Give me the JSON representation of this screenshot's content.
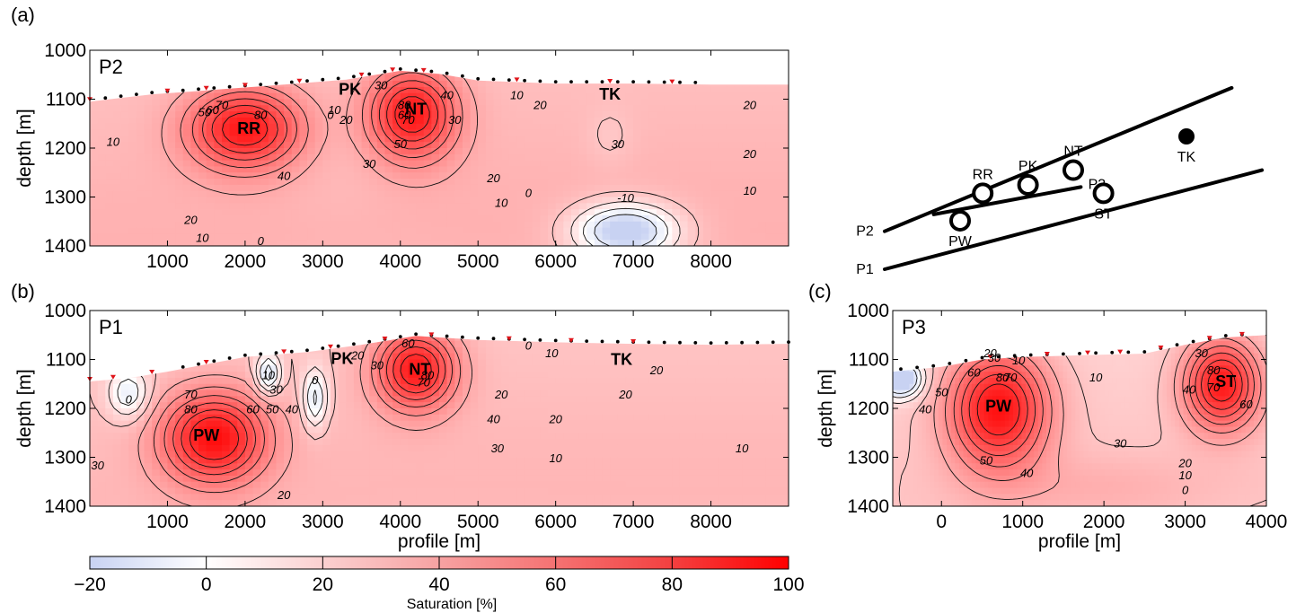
{
  "colors": {
    "negative": "#c8d2f2",
    "zero": "#ffffff",
    "max": "#ff0000",
    "contour": "#111111",
    "sensor_black": "#000000",
    "sensor_red": "#e0141a"
  },
  "chart_data": [
    {
      "type": "heatmap",
      "panel": "(a)",
      "label": "P2",
      "ylabel": "depth [m]",
      "xlabel": "",
      "xlim": [
        0,
        9000
      ],
      "ylim": [
        1400,
        1000
      ],
      "x_ticks": [
        "1000",
        "2000",
        "3000",
        "4000",
        "5000",
        "6000",
        "7000",
        "8000"
      ],
      "x_tick_values": [
        1000,
        2000,
        3000,
        4000,
        5000,
        6000,
        7000,
        8000
      ],
      "y_ticks": [
        "1000",
        "1100",
        "1200",
        "1300",
        "1400"
      ],
      "y_tick_values": [
        1000,
        1100,
        1200,
        1300,
        1400
      ],
      "background_saturation": 22,
      "surface": [
        [
          0,
          1105
        ],
        [
          800,
          1090
        ],
        [
          1500,
          1082
        ],
        [
          2500,
          1070
        ],
        [
          3300,
          1060
        ],
        [
          4000,
          1042
        ],
        [
          4500,
          1048
        ],
        [
          5000,
          1062
        ],
        [
          6000,
          1068
        ],
        [
          7000,
          1068
        ],
        [
          8000,
          1070
        ],
        [
          9000,
          1070
        ]
      ],
      "anomalies": [
        {
          "x": 2000,
          "depth": 1160,
          "peak": 85,
          "sx": 700,
          "sy": 80
        },
        {
          "x": 4150,
          "depth": 1130,
          "peak": 85,
          "sx": 550,
          "sy": 90
        },
        {
          "x": 3250,
          "depth": 1230,
          "peak": 15,
          "sx": 800,
          "sy": 150
        },
        {
          "x": 6900,
          "depth": 1370,
          "peak": -32,
          "sx": 650,
          "sy": 55
        },
        {
          "x": 6700,
          "depth": 1180,
          "peak": 12,
          "sx": 300,
          "sy": 60
        }
      ],
      "features": [
        {
          "name": "RR",
          "x": 2050,
          "depth": 1160
        },
        {
          "name": "PK",
          "x": 3350,
          "depth": 1080
        },
        {
          "name": "NT",
          "x": 4200,
          "depth": 1120
        },
        {
          "name": "TK",
          "x": 6700,
          "depth": 1090
        }
      ],
      "contour_labels": [
        {
          "text": "80",
          "x": 2200,
          "depth": 1140
        },
        {
          "text": "70",
          "x": 1700,
          "depth": 1120
        },
        {
          "text": "60",
          "x": 1580,
          "depth": 1130
        },
        {
          "text": "50",
          "x": 1480,
          "depth": 1135
        },
        {
          "text": "40",
          "x": 2500,
          "depth": 1265
        },
        {
          "text": "30",
          "x": 3600,
          "depth": 1240
        },
        {
          "text": "20",
          "x": 1300,
          "depth": 1355
        },
        {
          "text": "10",
          "x": 1450,
          "depth": 1392
        },
        {
          "text": "10",
          "x": 300,
          "depth": 1195
        },
        {
          "text": "0",
          "x": 2200,
          "depth": 1398
        },
        {
          "text": "80",
          "x": 4050,
          "depth": 1120
        },
        {
          "text": "70",
          "x": 4100,
          "depth": 1150
        },
        {
          "text": "60",
          "x": 4050,
          "depth": 1140
        },
        {
          "text": "50",
          "x": 4000,
          "depth": 1200
        },
        {
          "text": "40",
          "x": 4600,
          "depth": 1100
        },
        {
          "text": "30",
          "x": 4700,
          "depth": 1150
        },
        {
          "text": "10",
          "x": 3150,
          "depth": 1130
        },
        {
          "text": "20",
          "x": 3300,
          "depth": 1150
        },
        {
          "text": "0",
          "x": 3100,
          "depth": 1140
        },
        {
          "text": "30",
          "x": 3750,
          "depth": 1080
        },
        {
          "text": "20",
          "x": 5200,
          "depth": 1270
        },
        {
          "text": "10",
          "x": 5300,
          "depth": 1320
        },
        {
          "text": "0",
          "x": 5650,
          "depth": 1300
        },
        {
          "text": "-10",
          "x": 6900,
          "depth": 1310
        },
        {
          "text": "10",
          "x": 5500,
          "depth": 1100
        },
        {
          "text": "20",
          "x": 5800,
          "depth": 1120
        },
        {
          "text": "30",
          "x": 6800,
          "depth": 1200
        },
        {
          "text": "20",
          "x": 8500,
          "depth": 1120
        },
        {
          "text": "20",
          "x": 8500,
          "depth": 1220
        },
        {
          "text": "10",
          "x": 8500,
          "depth": 1295
        }
      ],
      "sensors_black": [
        200,
        400,
        600,
        800,
        1000,
        1200,
        1400,
        1600,
        1800,
        2000,
        2200,
        2400,
        2600,
        2800,
        3000,
        3200,
        3400,
        3600,
        3800,
        4000,
        4200,
        4400,
        4600,
        4800,
        5000,
        5200,
        5400,
        5600,
        5800,
        6000,
        6200,
        6400,
        6600,
        6800,
        7000,
        7200,
        7400,
        7600,
        7800
      ],
      "sensors_red": [
        0,
        1000,
        1500,
        2000,
        2700,
        3500,
        3900,
        4300,
        5500,
        6700,
        7500
      ]
    },
    {
      "type": "heatmap",
      "panel": "(b)",
      "label": "P1",
      "ylabel": "depth [m]",
      "xlabel": "profile [m]",
      "xlim": [
        0,
        9000
      ],
      "ylim": [
        1400,
        1000
      ],
      "x_ticks": [
        "1000",
        "2000",
        "3000",
        "4000",
        "5000",
        "6000",
        "7000",
        "8000"
      ],
      "x_tick_values": [
        1000,
        2000,
        3000,
        4000,
        5000,
        6000,
        7000,
        8000
      ],
      "y_ticks": [
        "1000",
        "1100",
        "1200",
        "1300",
        "1400"
      ],
      "y_tick_values": [
        1000,
        1100,
        1200,
        1300,
        1400
      ],
      "background_saturation": 20,
      "surface": [
        [
          0,
          1145
        ],
        [
          500,
          1138
        ],
        [
          1000,
          1125
        ],
        [
          1500,
          1110
        ],
        [
          2000,
          1095
        ],
        [
          2800,
          1085
        ],
        [
          3500,
          1070
        ],
        [
          4200,
          1052
        ],
        [
          5000,
          1060
        ],
        [
          6000,
          1065
        ],
        [
          7000,
          1068
        ],
        [
          8000,
          1070
        ],
        [
          9000,
          1068
        ]
      ],
      "anomalies": [
        {
          "x": 1600,
          "depth": 1260,
          "peak": 88,
          "sx": 650,
          "sy": 90
        },
        {
          "x": 4200,
          "depth": 1120,
          "peak": 85,
          "sx": 500,
          "sy": 80
        },
        {
          "x": 2300,
          "depth": 1130,
          "peak": -20,
          "sx": 150,
          "sy": 40
        },
        {
          "x": 2900,
          "depth": 1180,
          "peak": -15,
          "sx": 150,
          "sy": 60
        },
        {
          "x": 500,
          "depth": 1170,
          "peak": -10,
          "sx": 250,
          "sy": 50
        }
      ],
      "features": [
        {
          "name": "PW",
          "x": 1500,
          "depth": 1255
        },
        {
          "name": "PK",
          "x": 3250,
          "depth": 1098
        },
        {
          "name": "NT",
          "x": 4250,
          "depth": 1120
        },
        {
          "name": "TK",
          "x": 6850,
          "depth": 1100
        }
      ],
      "contour_labels": [
        {
          "text": "70",
          "x": 1300,
          "depth": 1180
        },
        {
          "text": "80",
          "x": 1300,
          "depth": 1210
        },
        {
          "text": "60",
          "x": 2100,
          "depth": 1210
        },
        {
          "text": "50",
          "x": 2350,
          "depth": 1210
        },
        {
          "text": "40",
          "x": 2600,
          "depth": 1210
        },
        {
          "text": "30",
          "x": 2400,
          "depth": 1170
        },
        {
          "text": "10",
          "x": 2300,
          "depth": 1140
        },
        {
          "text": "0",
          "x": 2900,
          "depth": 1150
        },
        {
          "text": "0",
          "x": 500,
          "depth": 1190
        },
        {
          "text": "60",
          "x": 4100,
          "depth": 1075
        },
        {
          "text": "80",
          "x": 4350,
          "depth": 1140
        },
        {
          "text": "70",
          "x": 4300,
          "depth": 1155
        },
        {
          "text": "20",
          "x": 3450,
          "depth": 1100
        },
        {
          "text": "30",
          "x": 3700,
          "depth": 1120
        },
        {
          "text": "0",
          "x": 5650,
          "depth": 1080
        },
        {
          "text": "10",
          "x": 5950,
          "depth": 1095
        },
        {
          "text": "20",
          "x": 5300,
          "depth": 1180
        },
        {
          "text": "40",
          "x": 5200,
          "depth": 1230
        },
        {
          "text": "30",
          "x": 5250,
          "depth": 1290
        },
        {
          "text": "20",
          "x": 6000,
          "depth": 1230
        },
        {
          "text": "10",
          "x": 6000,
          "depth": 1310
        },
        {
          "text": "20",
          "x": 7300,
          "depth": 1130
        },
        {
          "text": "20",
          "x": 6900,
          "depth": 1180
        },
        {
          "text": "10",
          "x": 8400,
          "depth": 1290
        },
        {
          "text": "20",
          "x": 2500,
          "depth": 1385
        },
        {
          "text": "30",
          "x": 100,
          "depth": 1325
        }
      ],
      "sensors_black": [
        1200,
        1400,
        1600,
        1800,
        2000,
        2200,
        2400,
        2600,
        2800,
        3000,
        3200,
        3400,
        3600,
        3800,
        4000,
        4200,
        4400,
        4600,
        4800,
        5000,
        5200,
        5400,
        5600,
        5800,
        6000,
        6200,
        6400,
        6600,
        6800,
        7000,
        7200,
        7400,
        7600,
        7800,
        8000,
        8200,
        8400,
        8600,
        8800,
        9000
      ],
      "sensors_red": [
        0,
        300,
        800,
        1500,
        2500,
        3100,
        3800,
        4400,
        5400,
        6200,
        7000
      ]
    },
    {
      "type": "heatmap",
      "panel": "(c)",
      "label": "P3",
      "ylabel": "depth [m]",
      "xlabel": "profile [m]",
      "xlim": [
        -600,
        4000
      ],
      "ylim": [
        1400,
        1000
      ],
      "x_ticks": [
        "0",
        "1000",
        "2000",
        "3000",
        "4000"
      ],
      "x_tick_values": [
        0,
        1000,
        2000,
        3000,
        4000
      ],
      "y_ticks": [
        "1000",
        "1100",
        "1200",
        "1300",
        "1400"
      ],
      "y_tick_values": [
        1000,
        1100,
        1200,
        1300,
        1400
      ],
      "background_saturation": 15,
      "surface": [
        [
          -600,
          1125
        ],
        [
          0,
          1115
        ],
        [
          500,
          1100
        ],
        [
          1000,
          1095
        ],
        [
          2000,
          1090
        ],
        [
          2500,
          1088
        ],
        [
          3000,
          1070
        ],
        [
          3500,
          1055
        ],
        [
          4000,
          1050
        ]
      ],
      "anomalies": [
        {
          "x": 700,
          "depth": 1200,
          "peak": 88,
          "sx": 600,
          "sy": 120
        },
        {
          "x": 3450,
          "depth": 1150,
          "peak": 85,
          "sx": 450,
          "sy": 90
        },
        {
          "x": -500,
          "depth": 1140,
          "peak": -40,
          "sx": 250,
          "sy": 35
        },
        {
          "x": 1900,
          "depth": 1360,
          "peak": 20,
          "sx": 1400,
          "sy": 60
        }
      ],
      "features": [
        {
          "name": "PW",
          "x": 700,
          "depth": 1195
        },
        {
          "name": "ST",
          "x": 3500,
          "depth": 1145
        }
      ],
      "contour_labels": [
        {
          "text": "60",
          "x": 400,
          "depth": 1135
        },
        {
          "text": "80",
          "x": 750,
          "depth": 1145
        },
        {
          "text": "70",
          "x": 850,
          "depth": 1145
        },
        {
          "text": "50",
          "x": 0,
          "depth": 1175
        },
        {
          "text": "40",
          "x": -200,
          "depth": 1210
        },
        {
          "text": "50",
          "x": 550,
          "depth": 1315
        },
        {
          "text": "40",
          "x": 1050,
          "depth": 1340
        },
        {
          "text": "30",
          "x": 650,
          "depth": 1105
        },
        {
          "text": "20",
          "x": 600,
          "depth": 1095
        },
        {
          "text": "10",
          "x": 950,
          "depth": 1110
        },
        {
          "text": "10",
          "x": 1900,
          "depth": 1145
        },
        {
          "text": "30",
          "x": 2200,
          "depth": 1280
        },
        {
          "text": "20",
          "x": 3000,
          "depth": 1320
        },
        {
          "text": "10",
          "x": 3000,
          "depth": 1345
        },
        {
          "text": "0",
          "x": 3000,
          "depth": 1375
        },
        {
          "text": "40",
          "x": 3050,
          "depth": 1170
        },
        {
          "text": "80",
          "x": 3350,
          "depth": 1130
        },
        {
          "text": "70",
          "x": 3350,
          "depth": 1165
        },
        {
          "text": "60",
          "x": 3750,
          "depth": 1200
        },
        {
          "text": "30",
          "x": 3200,
          "depth": 1095
        }
      ],
      "sensors_black": [
        -500,
        -300,
        -100,
        100,
        300,
        500,
        700,
        900,
        1100,
        1300,
        1500,
        1700,
        1900,
        2100,
        2300,
        2500,
        2700,
        2900,
        3100,
        3300,
        3500,
        3700
      ],
      "sensors_red": [
        600,
        1300,
        1800,
        2200,
        2700,
        3300,
        3700
      ]
    },
    {
      "type": "diagram",
      "panel": "map",
      "profiles": [
        {
          "name": "P1",
          "points": [
            [
              0,
              0
            ],
            [
              100,
              47
            ]
          ]
        },
        {
          "name": "P2",
          "points": [
            [
              0,
              18
            ],
            [
              92,
              86
            ]
          ]
        },
        {
          "name": "P3",
          "points": [
            [
              13,
              26
            ],
            [
              52,
              39
            ]
          ]
        }
      ],
      "sites": [
        {
          "name": "RR",
          "x": 26,
          "y": 36
        },
        {
          "name": "PK",
          "x": 38,
          "y": 40
        },
        {
          "name": "NT",
          "x": 50,
          "y": 47
        },
        {
          "name": "TK",
          "x": 80,
          "y": 63
        },
        {
          "name": "PW",
          "x": 20,
          "y": 23
        },
        {
          "name": "ST",
          "x": 58,
          "y": 36
        }
      ]
    }
  ],
  "colorbar": {
    "title": "Saturation [%]",
    "ticks": [
      "−20",
      "0",
      "20",
      "40",
      "60",
      "80",
      "100"
    ],
    "tick_values": [
      -20,
      0,
      20,
      40,
      60,
      80,
      100
    ],
    "range": [
      -20,
      100
    ]
  }
}
